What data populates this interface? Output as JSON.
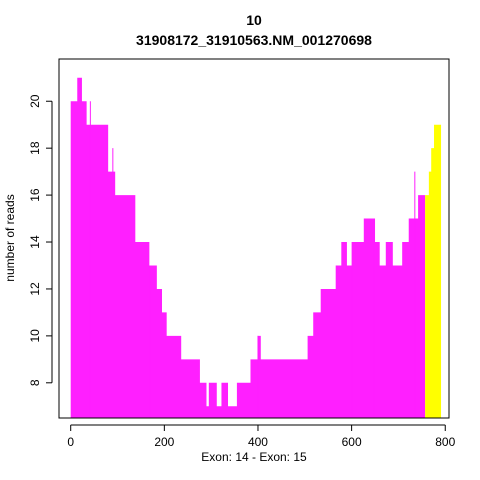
{
  "chart_data": {
    "type": "area",
    "title": "10",
    "subtitle": "31908172_31910563.NM_001270698",
    "xlabel": "Exon: 14 - Exon: 15",
    "ylabel": "number of reads",
    "xlim": [
      -25,
      808
    ],
    "ylim": [
      6.5,
      21.8
    ],
    "x_ticks": [
      0,
      200,
      400,
      600,
      800
    ],
    "y_ticks": [
      8,
      10,
      12,
      14,
      16,
      18,
      20
    ],
    "grid": false,
    "legend": "none",
    "series": [
      {
        "color": "#ff1fff",
        "x_start": 0,
        "x_end": 757,
        "points": [
          [
            0,
            20
          ],
          [
            14,
            21
          ],
          [
            24,
            20
          ],
          [
            34,
            19
          ],
          [
            50,
            19
          ],
          [
            80,
            17
          ],
          [
            95,
            16
          ],
          [
            118,
            16
          ],
          [
            138,
            14
          ],
          [
            168,
            13
          ],
          [
            184,
            12
          ],
          [
            195,
            11
          ],
          [
            205,
            10
          ],
          [
            220,
            10
          ],
          [
            236,
            9
          ],
          [
            248,
            9
          ],
          [
            260,
            9
          ],
          [
            276,
            8
          ],
          [
            290,
            7
          ],
          [
            295,
            8
          ],
          [
            312,
            7
          ],
          [
            322,
            8
          ],
          [
            336,
            7
          ],
          [
            355,
            8
          ],
          [
            367,
            8
          ],
          [
            384,
            9
          ],
          [
            399,
            10
          ],
          [
            406,
            9
          ],
          [
            415,
            9
          ],
          [
            430,
            9
          ],
          [
            455,
            9
          ],
          [
            496,
            9
          ],
          [
            506,
            10
          ],
          [
            518,
            11
          ],
          [
            534,
            12
          ],
          [
            556,
            12
          ],
          [
            566,
            13
          ],
          [
            578,
            14
          ],
          [
            590,
            13
          ],
          [
            600,
            14
          ],
          [
            614,
            14
          ],
          [
            626,
            15
          ],
          [
            650,
            14
          ],
          [
            660,
            13
          ],
          [
            673,
            14
          ],
          [
            688,
            13
          ],
          [
            700,
            13
          ],
          [
            708,
            14
          ],
          [
            722,
            15
          ],
          [
            742,
            16
          ],
          [
            757,
            16
          ]
        ],
        "spikes": [
          [
            42,
            20
          ],
          [
            90,
            18
          ],
          [
            170,
            13
          ],
          [
            400,
            10
          ],
          [
            600,
            13
          ],
          [
            648,
            14
          ],
          [
            735,
            17
          ]
        ]
      },
      {
        "color": "#ffff00",
        "x_start": 757,
        "x_end": 791,
        "points": [
          [
            757,
            16
          ],
          [
            765,
            17
          ],
          [
            770,
            18
          ],
          [
            776,
            19
          ],
          [
            791,
            19
          ]
        ]
      }
    ]
  }
}
